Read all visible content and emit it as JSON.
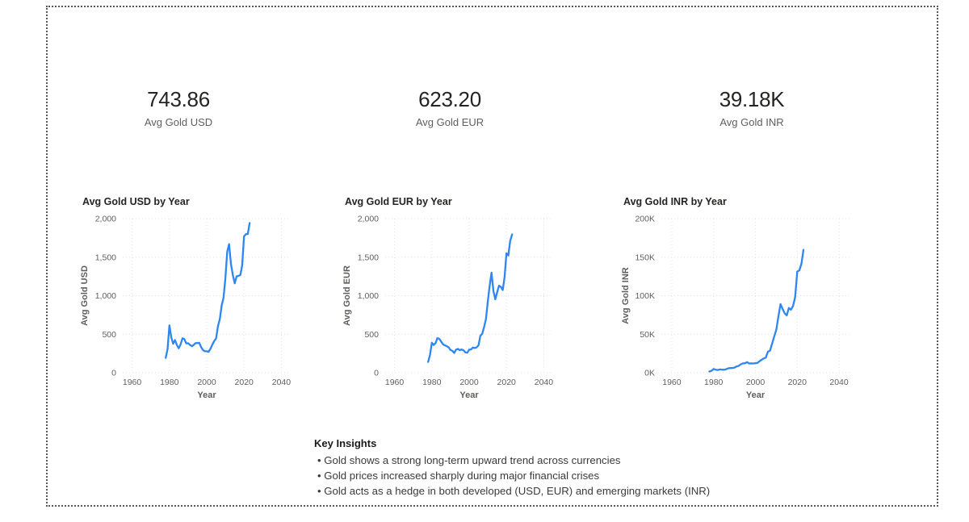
{
  "page": {
    "background": "#FFFFFF",
    "border_color": "#585858",
    "accent_blue": "#2E86F0"
  },
  "kpis": [
    {
      "value": "743.86",
      "label": "Avg Gold USD"
    },
    {
      "value": "623.20",
      "label": "Avg Gold EUR"
    },
    {
      "value": "39.18K",
      "label": "Avg Gold INR"
    }
  ],
  "insights": {
    "heading": "Key Insights",
    "bullets": [
      "Gold shows a strong long-term upward trend across currencies",
      "Gold prices increased sharply during major financial crises",
      "Gold acts as a hedge in both developed (USD, EUR) and emerging markets (INR)"
    ]
  },
  "chart_data": [
    {
      "type": "line",
      "title": "Avg Gold USD by Year",
      "xlabel": "Year",
      "ylabel": "Avg Gold USD",
      "x_domain": [
        1955,
        2045
      ],
      "y_domain": [
        0,
        2000
      ],
      "x_ticks": [
        {
          "v": 1960,
          "label": "1960"
        },
        {
          "v": 1980,
          "label": "1980"
        },
        {
          "v": 2000,
          "label": "2000"
        },
        {
          "v": 2020,
          "label": "2020"
        },
        {
          "v": 2040,
          "label": "2040"
        }
      ],
      "y_ticks": [
        {
          "v": 0,
          "label": "0"
        },
        {
          "v": 500,
          "label": "500"
        },
        {
          "v": 1000,
          "label": "1,000"
        },
        {
          "v": 1500,
          "label": "1,500"
        },
        {
          "v": 2000,
          "label": "2,000"
        }
      ],
      "grid": true,
      "legend": "none",
      "line_color": "#2E86F0",
      "years": [
        1978,
        1979,
        1980,
        1981,
        1982,
        1983,
        1984,
        1985,
        1986,
        1987,
        1988,
        1989,
        1990,
        1991,
        1992,
        1993,
        1994,
        1995,
        1996,
        1997,
        1998,
        1999,
        2000,
        2001,
        2002,
        2003,
        2004,
        2005,
        2006,
        2007,
        2008,
        2009,
        2010,
        2011,
        2012,
        2013,
        2014,
        2015,
        2016,
        2017,
        2018,
        2019,
        2020,
        2021,
        2022,
        2023
      ],
      "values": [
        193,
        306,
        615,
        460,
        376,
        424,
        361,
        317,
        368,
        447,
        437,
        381,
        383,
        362,
        344,
        360,
        384,
        384,
        388,
        331,
        294,
        279,
        279,
        271,
        310,
        363,
        410,
        445,
        603,
        695,
        872,
        972,
        1225,
        1572,
        1669,
        1411,
        1266,
        1160,
        1251,
        1257,
        1268,
        1393,
        1770,
        1799,
        1800,
        1943
      ]
    },
    {
      "type": "line",
      "title": "Avg Gold EUR by Year",
      "xlabel": "Year",
      "ylabel": "Avg Gold EUR",
      "x_domain": [
        1955,
        2045
      ],
      "y_domain": [
        0,
        2000
      ],
      "x_ticks": [
        {
          "v": 1960,
          "label": "1960"
        },
        {
          "v": 1980,
          "label": "1980"
        },
        {
          "v": 2000,
          "label": "2000"
        },
        {
          "v": 2020,
          "label": "2020"
        },
        {
          "v": 2040,
          "label": "2040"
        }
      ],
      "y_ticks": [
        {
          "v": 0,
          "label": "0"
        },
        {
          "v": 500,
          "label": "500"
        },
        {
          "v": 1000,
          "label": "1,000"
        },
        {
          "v": 1500,
          "label": "1,500"
        },
        {
          "v": 2000,
          "label": "2,000"
        }
      ],
      "grid": true,
      "legend": "none",
      "line_color": "#2E86F0",
      "years": [
        1978,
        1979,
        1980,
        1981,
        1982,
        1983,
        1984,
        1985,
        1986,
        1987,
        1988,
        1989,
        1990,
        1991,
        1992,
        1993,
        1994,
        1995,
        1996,
        1997,
        1998,
        1999,
        2000,
        2001,
        2002,
        2003,
        2004,
        2005,
        2006,
        2007,
        2008,
        2009,
        2010,
        2011,
        2012,
        2013,
        2014,
        2015,
        2016,
        2017,
        2018,
        2019,
        2020,
        2021,
        2022,
        2023
      ],
      "values": [
        140,
        230,
        390,
        360,
        385,
        450,
        440,
        405,
        370,
        355,
        345,
        330,
        295,
        285,
        257,
        300,
        310,
        292,
        303,
        290,
        264,
        260,
        300,
        302,
        327,
        320,
        330,
        356,
        480,
        506,
        594,
        697,
        924,
        1129,
        1299,
        1063,
        953,
        1045,
        1130,
        1114,
        1073,
        1244,
        1551,
        1521,
        1710,
        1796
      ]
    },
    {
      "type": "line",
      "title": "Avg Gold INR by Year",
      "xlabel": "Year",
      "ylabel": "Avg Gold INR",
      "x_domain": [
        1955,
        2045
      ],
      "y_domain": [
        0,
        200
      ],
      "y_unit": "K",
      "x_ticks": [
        {
          "v": 1960,
          "label": "1960"
        },
        {
          "v": 1980,
          "label": "1980"
        },
        {
          "v": 2000,
          "label": "2000"
        },
        {
          "v": 2020,
          "label": "2020"
        },
        {
          "v": 2040,
          "label": "2040"
        }
      ],
      "y_ticks": [
        {
          "v": 0,
          "label": "0K"
        },
        {
          "v": 50,
          "label": "50K"
        },
        {
          "v": 100,
          "label": "100K"
        },
        {
          "v": 150,
          "label": "150K"
        },
        {
          "v": 200,
          "label": "200K"
        }
      ],
      "grid": true,
      "legend": "none",
      "line_color": "#2E86F0",
      "years": [
        1978,
        1979,
        1980,
        1981,
        1982,
        1983,
        1984,
        1985,
        1986,
        1987,
        1988,
        1989,
        1990,
        1991,
        1992,
        1993,
        1994,
        1995,
        1996,
        1997,
        1998,
        1999,
        2000,
        2001,
        2002,
        2003,
        2004,
        2005,
        2006,
        2007,
        2008,
        2009,
        2010,
        2011,
        2012,
        2013,
        2014,
        2015,
        2016,
        2017,
        2018,
        2019,
        2020,
        2021,
        2022,
        2023
      ],
      "values": [
        1.6,
        2.5,
        4.9,
        4.0,
        3.6,
        4.3,
        4.1,
        3.9,
        4.6,
        5.8,
        6.1,
        6.2,
        6.7,
        8.2,
        8.9,
        11.0,
        12.1,
        12.4,
        13.7,
        12.0,
        12.1,
        12.0,
        12.5,
        12.8,
        15.1,
        16.9,
        18.6,
        19.6,
        27.3,
        28.7,
        37.9,
        47.0,
        56.0,
        73.4,
        89.1,
        82.7,
        77.2,
        74.4,
        84.1,
        81.8,
        86.7,
        98.1,
        131.2,
        132.9,
        141.5,
        159.5
      ]
    }
  ]
}
